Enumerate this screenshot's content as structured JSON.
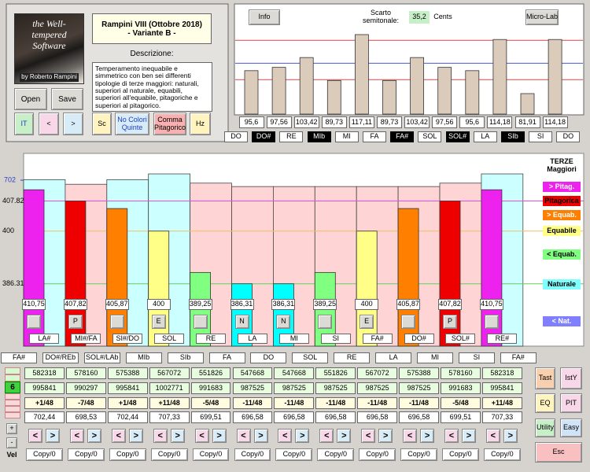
{
  "logo": {
    "title": "the Well-tempered Software",
    "author": "by Roberto Rampini"
  },
  "temperament": {
    "name": "Rampini VIII (Ottobre 2018)",
    "variant": "- Variante B -",
    "description_label": "Descrizione:",
    "description": "Temperamento inequabile e simmetrico con ben sei differenti  tipologie di terze maggiori: naturali, superiori al naturale, equabili, superiori all'equabile, pitagoriche e superiori al pitagorico."
  },
  "buttons": {
    "open": "Open",
    "save": "Save",
    "it": "IT",
    "prev": "<",
    "next": ">",
    "sc": "Sc",
    "no_colors": "No Colori Quinte",
    "comma": "Comma Pitagorico",
    "hz": "Hz"
  },
  "semitones": {
    "info": "Info",
    "deviation_label": "Scarto semitonale:",
    "deviation": "35,2",
    "unit": "Cents",
    "micro_lab": "Micro-Lab",
    "values": [
      95.6,
      97.56,
      103.42,
      89.73,
      117.11,
      89.73,
      103.42,
      97.56,
      95.6,
      114.18,
      81.91,
      114.18
    ],
    "value_labels": [
      "95,6",
      "97,56",
      "103,42",
      "89,73",
      "117,11",
      "89,73",
      "103,42",
      "97,56",
      "95,6",
      "114,18",
      "81,91",
      "114,18"
    ],
    "color": "#dbcbbb",
    "ylim": [
      69.7,
      135.4
    ],
    "reference_lines": [
      {
        "value": 113.69,
        "color": "#d04848"
      },
      {
        "value": 100,
        "color": "#4858d0"
      },
      {
        "value": 90.22,
        "color": "#d04848"
      }
    ],
    "notes": [
      {
        "label": "DO",
        "black": false
      },
      {
        "label": "DO#",
        "black": true
      },
      {
        "label": "RE",
        "black": false
      },
      {
        "label": "MIb",
        "black": true
      },
      {
        "label": "MI",
        "black": false
      },
      {
        "label": "FA",
        "black": false
      },
      {
        "label": "FA#",
        "black": true
      },
      {
        "label": "SOL",
        "black": false
      },
      {
        "label": "SOL#",
        "black": true
      },
      {
        "label": "LA",
        "black": false
      },
      {
        "label": "SIb",
        "black": true
      },
      {
        "label": "SI",
        "black": false
      },
      {
        "label": "DO",
        "black": false
      }
    ]
  },
  "thirds": {
    "ylim": [
      370.1,
      420.2
    ],
    "yticks": [
      407.82,
      400,
      386.31
    ],
    "tick_colors": [
      "#e050e0",
      "#f0c060",
      "#60d060"
    ],
    "values": [
      410.75,
      407.82,
      405.87,
      400,
      389.25,
      386.31,
      386.31,
      389.25,
      400,
      405.87,
      407.82,
      410.75
    ],
    "value_labels": [
      "410,75",
      "407,82",
      "405,87",
      "400",
      "389,25",
      "386,31",
      "386,31",
      "389,25",
      "400",
      "405,87",
      "407,82",
      "410,75"
    ],
    "colors": [
      "#ee22ee",
      "#ee0000",
      "#ff8000",
      "#ffff88",
      "#80ff80",
      "#00ffff",
      "#00ffff",
      "#80ff80",
      "#ffff88",
      "#ff8000",
      "#ee0000",
      "#ee22ee"
    ],
    "markers": [
      null,
      "P",
      null,
      "E",
      null,
      "N",
      "N",
      null,
      "E",
      null,
      "P",
      null
    ],
    "intervals": [
      "LA#",
      "MI#/FA",
      "SI#/DO",
      "SOL",
      "RE",
      "LA",
      "MI",
      "SI",
      "FA#",
      "DO#",
      "SOL#",
      "RE#"
    ]
  },
  "fifths": {
    "ylim": [
      561.3,
      724.7
    ],
    "yticks": [
      702
    ],
    "tick_color": "#3040c0",
    "values": [
      702.44,
      698.53,
      702.44,
      707.33,
      699.51,
      696.58,
      696.58,
      696.58,
      696.58,
      696.58,
      699.51,
      707.33
    ],
    "value_labels": [
      "702,44",
      "698,53",
      "702,44",
      "707,33",
      "699,51",
      "696,58",
      "696,58",
      "696,58",
      "696,58",
      "696,58",
      "699,51",
      "707,33"
    ],
    "colors": [
      "#ccffff",
      "#ffd4d4",
      "#ccffff",
      "#ccffff",
      "#ffd4d4",
      "#ffd4d4",
      "#ffd4d4",
      "#ffd4d4",
      "#ffd4d4",
      "#ffd4d4",
      "#ffd4d4",
      "#ccffff"
    ]
  },
  "legend": {
    "title": "TERZE",
    "subtitle": "Maggiori",
    "items": [
      {
        "label": "> Pitag.",
        "color": "#ee22ee",
        "text": "#ffffff"
      },
      {
        "label": "Pitagorica",
        "color": "#ee0000",
        "text": "#000000"
      },
      {
        "label": "> Equab.",
        "color": "#ff8000",
        "text": "#ffffff"
      },
      {
        "label": "Equabile",
        "color": "#ffff88",
        "text": "#000000"
      },
      {
        "label": "< Equab.",
        "color": "#80ff80",
        "text": "#000000"
      },
      {
        "label": "Naturale",
        "color": "#80ffff",
        "text": "#000000"
      },
      {
        "label": "< Nat.",
        "color": "#8080ff",
        "text": "#ffffff"
      }
    ]
  },
  "circle_notes": [
    "FA#",
    "DO#/REb",
    "SOL#/LAb",
    "MIb",
    "SIb",
    "FA",
    "DO",
    "SOL",
    "RE",
    "LA",
    "MI",
    "SI",
    "FA#"
  ],
  "table": {
    "row1": [
      582318,
      578160,
      575388,
      567072,
      551826,
      547668,
      547668,
      551826,
      567072,
      575388,
      578160,
      582318
    ],
    "row2": [
      995841,
      990297,
      995841,
      1002771,
      991683,
      987525,
      987525,
      987525,
      987525,
      987525,
      991683,
      995841
    ],
    "commas": [
      "+1/48",
      "-7/48",
      "+1/48",
      "+11/48",
      "-5/48",
      "-11/48",
      "-11/48",
      "-11/48",
      "-11/48",
      "-11/48",
      "-5/48",
      "+11/48"
    ]
  },
  "side": {
    "octave": "6",
    "plus": "+",
    "minus": "-",
    "vel": "Vel"
  },
  "arrows": [
    [
      "<",
      ">"
    ],
    [
      "<",
      ">"
    ],
    [
      "<",
      ">"
    ],
    [
      "<",
      ">"
    ],
    [
      "<",
      ">"
    ],
    [
      "<",
      ">"
    ],
    [
      "<",
      ">"
    ],
    [
      "<",
      ">"
    ],
    [
      "<",
      ">"
    ],
    [
      "<",
      ">"
    ],
    [
      "<",
      ">"
    ],
    [
      "<",
      ">"
    ]
  ],
  "copy": [
    "Copy/0",
    "Copy/0",
    "Copy/0",
    "Copy/0",
    "Copy/0",
    "Copy/0",
    "Copy/0",
    "Copy/0",
    "Copy/0",
    "Copy/0",
    "Copy/0",
    "Copy/0"
  ],
  "tools": [
    {
      "label": "Tast",
      "color": "#f8d0b0"
    },
    {
      "label": "IstY",
      "color": "#f8d8e8"
    },
    {
      "label": "EQ",
      "color": "#fff4c0"
    },
    {
      "label": "PIT",
      "color": "#f8d8e8"
    },
    {
      "label": "Utility",
      "color": "#c8f0c8"
    },
    {
      "label": "Easy",
      "color": "#d0e4f8"
    },
    {
      "label": "Esc",
      "color": "#f8c0c0"
    }
  ]
}
